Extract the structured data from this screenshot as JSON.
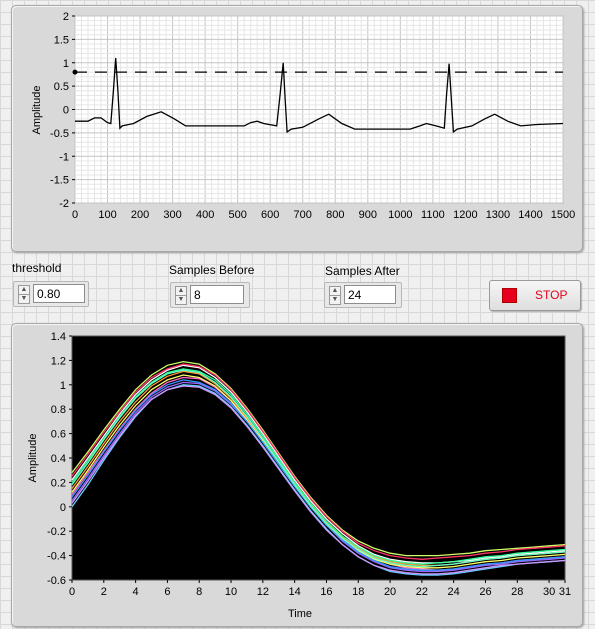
{
  "top_graph": {
    "ylabel": "Amplitude",
    "x_ticks": [
      "0",
      "100",
      "200",
      "300",
      "400",
      "500",
      "600",
      "700",
      "800",
      "900",
      "1000",
      "1100",
      "1200",
      "1300",
      "1400",
      "1500"
    ],
    "y_ticks": [
      "2",
      "1.5",
      "1",
      "0.5",
      "0",
      "-0.5",
      "-1",
      "-1.5",
      "-2"
    ]
  },
  "controls": {
    "threshold": {
      "label": "threshold",
      "value": "0.80"
    },
    "samples_before": {
      "label": "Samples Before",
      "value": "8"
    },
    "samples_after": {
      "label": "Samples After",
      "value": "24"
    },
    "stop": {
      "label": "STOP",
      "color": "#e8001c"
    }
  },
  "bottom_graph": {
    "xlabel": "Time",
    "ylabel": "Amplitude",
    "x_ticks": [
      "0",
      "2",
      "4",
      "6",
      "8",
      "10",
      "12",
      "14",
      "16",
      "18",
      "20",
      "22",
      "24",
      "26",
      "28",
      "30",
      "31"
    ],
    "y_ticks": [
      "1.4",
      "1.2",
      "1",
      "0.8",
      "0.6",
      "0.4",
      "0.2",
      "0",
      "-0.2",
      "-0.4",
      "-0.6"
    ]
  },
  "chart_data": [
    {
      "type": "line",
      "xlim": [
        0,
        1500
      ],
      "ylim": [
        -2,
        2
      ],
      "ylabel": "Amplitude",
      "grid": true,
      "threshold": 0.8,
      "peaks_x": [
        125,
        640,
        1150
      ],
      "series": [
        {
          "color": "#000000",
          "points": [
            [
              0,
              -0.25
            ],
            [
              40,
              -0.25
            ],
            [
              60,
              -0.18
            ],
            [
              80,
              -0.18
            ],
            [
              100,
              -0.28
            ],
            [
              110,
              -0.3
            ],
            [
              118,
              0.4
            ],
            [
              125,
              1.1
            ],
            [
              132,
              0.4
            ],
            [
              138,
              -0.4
            ],
            [
              145,
              -0.35
            ],
            [
              180,
              -0.3
            ],
            [
              220,
              -0.15
            ],
            [
              265,
              -0.05
            ],
            [
              305,
              -0.2
            ],
            [
              340,
              -0.35
            ],
            [
              500,
              -0.35
            ],
            [
              520,
              -0.35
            ],
            [
              540,
              -0.28
            ],
            [
              560,
              -0.25
            ],
            [
              580,
              -0.3
            ],
            [
              620,
              -0.35
            ],
            [
              630,
              0.3
            ],
            [
              640,
              1.0
            ],
            [
              646,
              0.2
            ],
            [
              652,
              -0.48
            ],
            [
              665,
              -0.42
            ],
            [
              700,
              -0.38
            ],
            [
              750,
              -0.2
            ],
            [
              780,
              -0.1
            ],
            [
              820,
              -0.3
            ],
            [
              860,
              -0.42
            ],
            [
              1030,
              -0.42
            ],
            [
              1060,
              -0.35
            ],
            [
              1080,
              -0.3
            ],
            [
              1110,
              -0.35
            ],
            [
              1135,
              -0.4
            ],
            [
              1142,
              0.3
            ],
            [
              1150,
              0.98
            ],
            [
              1157,
              0.2
            ],
            [
              1163,
              -0.48
            ],
            [
              1175,
              -0.42
            ],
            [
              1220,
              -0.35
            ],
            [
              1260,
              -0.2
            ],
            [
              1290,
              -0.1
            ],
            [
              1330,
              -0.25
            ],
            [
              1370,
              -0.35
            ],
            [
              1420,
              -0.32
            ],
            [
              1500,
              -0.3
            ]
          ]
        }
      ]
    },
    {
      "type": "line",
      "xlim": [
        0,
        31
      ],
      "ylim": [
        -0.6,
        1.4
      ],
      "xlabel": "Time",
      "ylabel": "Amplitude",
      "grid": false,
      "background": "#000000",
      "series": [
        {
          "color": "#ffffff",
          "values": [
            0.22,
            0.4,
            0.58,
            0.76,
            0.92,
            1.04,
            1.12,
            1.16,
            1.14,
            1.06,
            0.94,
            0.78,
            0.6,
            0.41,
            0.22,
            0.05,
            -0.1,
            -0.22,
            -0.32,
            -0.39,
            -0.43,
            -0.45,
            -0.46,
            -0.46,
            -0.45,
            -0.44,
            -0.42,
            -0.41,
            -0.39,
            -0.38,
            -0.37,
            -0.36
          ]
        },
        {
          "color": "#ff66cc",
          "values": [
            0.1,
            0.28,
            0.46,
            0.64,
            0.8,
            0.93,
            1.02,
            1.06,
            1.05,
            0.98,
            0.87,
            0.72,
            0.55,
            0.37,
            0.19,
            0.02,
            -0.13,
            -0.25,
            -0.35,
            -0.42,
            -0.47,
            -0.5,
            -0.51,
            -0.52,
            -0.51,
            -0.49,
            -0.47,
            -0.46,
            -0.44,
            -0.43,
            -0.42,
            -0.41
          ]
        },
        {
          "color": "#66ccff",
          "values": [
            0.0,
            0.18,
            0.38,
            0.57,
            0.74,
            0.88,
            0.96,
            1.0,
            0.99,
            0.93,
            0.82,
            0.67,
            0.5,
            0.32,
            0.14,
            -0.03,
            -0.18,
            -0.31,
            -0.41,
            -0.48,
            -0.53,
            -0.55,
            -0.56,
            -0.56,
            -0.55,
            -0.53,
            -0.51,
            -0.49,
            -0.47,
            -0.46,
            -0.45,
            -0.44
          ]
        },
        {
          "color": "#ccff66",
          "values": [
            0.28,
            0.45,
            0.63,
            0.8,
            0.96,
            1.08,
            1.16,
            1.19,
            1.17,
            1.09,
            0.97,
            0.81,
            0.63,
            0.44,
            0.25,
            0.08,
            -0.07,
            -0.19,
            -0.28,
            -0.34,
            -0.38,
            -0.4,
            -0.4,
            -0.4,
            -0.39,
            -0.38,
            -0.36,
            -0.35,
            -0.34,
            -0.33,
            -0.32,
            -0.31
          ]
        },
        {
          "color": "#ff9933",
          "values": [
            0.15,
            0.33,
            0.52,
            0.7,
            0.86,
            0.99,
            1.07,
            1.11,
            1.09,
            1.01,
            0.89,
            0.73,
            0.56,
            0.37,
            0.19,
            0.02,
            -0.13,
            -0.25,
            -0.34,
            -0.41,
            -0.45,
            -0.47,
            -0.48,
            -0.48,
            -0.47,
            -0.45,
            -0.43,
            -0.42,
            -0.4,
            -0.39,
            -0.38,
            -0.37
          ]
        },
        {
          "color": "#9966ff",
          "values": [
            0.05,
            0.23,
            0.42,
            0.6,
            0.77,
            0.9,
            0.98,
            1.02,
            1.01,
            0.95,
            0.84,
            0.7,
            0.53,
            0.35,
            0.17,
            0.0,
            -0.15,
            -0.28,
            -0.38,
            -0.45,
            -0.5,
            -0.52,
            -0.53,
            -0.53,
            -0.52,
            -0.5,
            -0.48,
            -0.47,
            -0.45,
            -0.44,
            -0.43,
            -0.42
          ]
        },
        {
          "color": "#33ff99",
          "values": [
            0.2,
            0.38,
            0.56,
            0.74,
            0.9,
            1.02,
            1.1,
            1.13,
            1.11,
            1.04,
            0.92,
            0.76,
            0.58,
            0.39,
            0.2,
            0.03,
            -0.12,
            -0.24,
            -0.33,
            -0.4,
            -0.44,
            -0.46,
            -0.47,
            -0.46,
            -0.45,
            -0.43,
            -0.41,
            -0.4,
            -0.38,
            -0.37,
            -0.36,
            -0.35
          ]
        },
        {
          "color": "#ffff66",
          "values": [
            0.12,
            0.3,
            0.49,
            0.67,
            0.83,
            0.96,
            1.04,
            1.08,
            1.06,
            0.99,
            0.87,
            0.71,
            0.54,
            0.35,
            0.17,
            0.0,
            -0.15,
            -0.27,
            -0.36,
            -0.43,
            -0.47,
            -0.49,
            -0.5,
            -0.5,
            -0.49,
            -0.47,
            -0.45,
            -0.44,
            -0.42,
            -0.41,
            -0.4,
            -0.39
          ]
        },
        {
          "color": "#ff3366",
          "values": [
            0.25,
            0.43,
            0.61,
            0.78,
            0.94,
            1.06,
            1.13,
            1.17,
            1.15,
            1.08,
            0.96,
            0.8,
            0.62,
            0.43,
            0.24,
            0.07,
            -0.08,
            -0.2,
            -0.3,
            -0.36,
            -0.4,
            -0.42,
            -0.43,
            -0.42,
            -0.41,
            -0.4,
            -0.38,
            -0.37,
            -0.35,
            -0.34,
            -0.33,
            -0.32
          ]
        },
        {
          "color": "#3399ff",
          "values": [
            0.08,
            0.26,
            0.45,
            0.63,
            0.79,
            0.92,
            1.0,
            1.04,
            1.02,
            0.96,
            0.85,
            0.7,
            0.53,
            0.35,
            0.17,
            0.0,
            -0.15,
            -0.27,
            -0.37,
            -0.44,
            -0.49,
            -0.51,
            -0.52,
            -0.52,
            -0.51,
            -0.49,
            -0.47,
            -0.46,
            -0.44,
            -0.43,
            -0.42,
            -0.41
          ]
        },
        {
          "color": "#66ffcc",
          "values": [
            0.18,
            0.36,
            0.55,
            0.73,
            0.89,
            1.01,
            1.09,
            1.12,
            1.1,
            1.02,
            0.9,
            0.74,
            0.56,
            0.37,
            0.18,
            0.01,
            -0.14,
            -0.26,
            -0.35,
            -0.42,
            -0.46,
            -0.48,
            -0.49,
            -0.48,
            -0.47,
            -0.45,
            -0.43,
            -0.42,
            -0.4,
            -0.39,
            -0.38,
            -0.37
          ]
        },
        {
          "color": "#cc99ff",
          "values": [
            0.03,
            0.21,
            0.4,
            0.58,
            0.75,
            0.88,
            0.96,
            0.99,
            0.98,
            0.92,
            0.81,
            0.66,
            0.49,
            0.31,
            0.13,
            -0.04,
            -0.19,
            -0.31,
            -0.41,
            -0.48,
            -0.52,
            -0.54,
            -0.55,
            -0.55,
            -0.54,
            -0.52,
            -0.5,
            -0.48,
            -0.47,
            -0.46,
            -0.45,
            -0.44
          ]
        }
      ]
    }
  ]
}
